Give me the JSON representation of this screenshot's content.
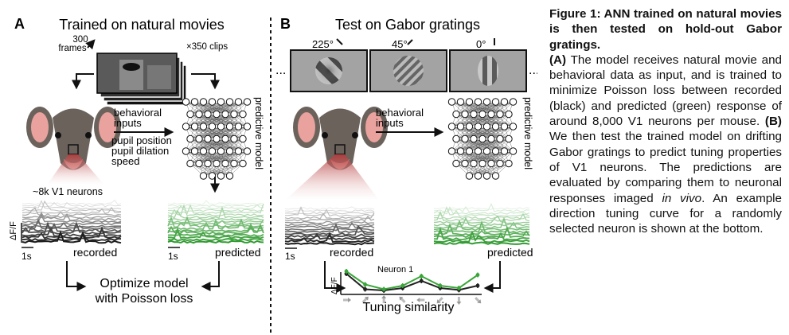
{
  "panelA": {
    "letter": "A",
    "title": "Trained on natural movies",
    "frames_label": [
      "300",
      "frames"
    ],
    "clips_label": "×350 clips",
    "behavioral_label": [
      "behavioral",
      "inputs"
    ],
    "behavior_vars": [
      "pupil position",
      "pupil dilation",
      "speed"
    ],
    "model_label": "predictive model",
    "neurons_label": "~8k V1 neurons",
    "dff_label": "ΔF/F",
    "scale_label": "1s",
    "recorded_label": "recorded",
    "predicted_label": "predicted",
    "optimize_label": [
      "Optimize model",
      "with Poisson loss"
    ]
  },
  "panelB": {
    "letter": "B",
    "title": "Test on Gabor gratings",
    "gabor_angles": [
      "225°",
      "45°",
      "0°"
    ],
    "dots": "...",
    "behavioral_label": [
      "behavioral",
      "inputs"
    ],
    "model_label": "predictive model",
    "dff_label": "ΔF/F",
    "scale_label": "1s",
    "recorded_label": "recorded",
    "predicted_label": "predicted",
    "neuron_label": "Neuron 1",
    "tuning_label": "Tuning similarity"
  },
  "tuning_curve": {
    "recorded": [
      0.8,
      0.15,
      0.1,
      0.2,
      0.5,
      0.2,
      0.12,
      0.3
    ],
    "predicted": [
      0.9,
      0.35,
      0.15,
      0.3,
      0.7,
      0.3,
      0.2,
      0.75
    ]
  },
  "colors": {
    "recorded": "#222222",
    "predicted": "#3aa63a",
    "arrow": "#111111",
    "mouse": "#6b625c",
    "ear": "#e9a29e"
  },
  "caption": {
    "title": "Figure 1: ANN trained on natural movies is then tested on hold-out Gabor gratings.",
    "a_tag": "(A)",
    "a_text": " The model receives natural movie and behavioral data as input, and is trained to minimize Poisson loss between recorded (black) and predicted (green) response of around 8,000 V1 neurons per mouse. ",
    "b_tag": "(B)",
    "b_text": " We then test the trained model on drifting Gabor gratings to predict tuning properties of V1 neurons. The predictions are evaluated by comparing them to neuronal responses imaged ",
    "in_vivo": "in vivo",
    "end_text": ". An example direction tuning curve for a randomly selected neuron is shown at the bottom."
  }
}
